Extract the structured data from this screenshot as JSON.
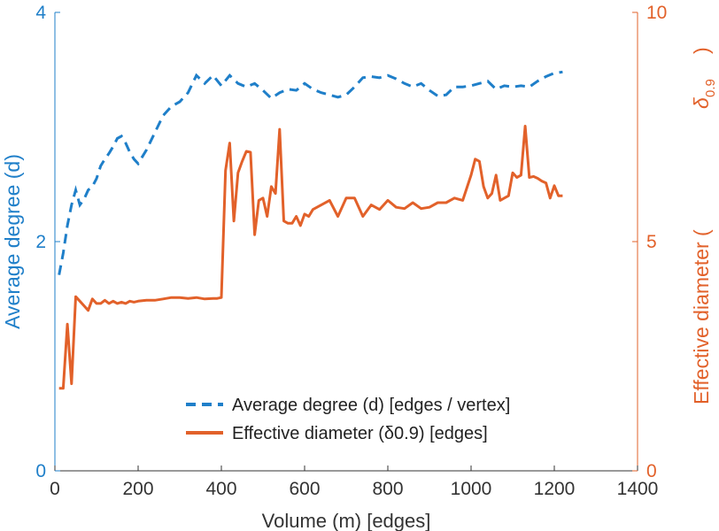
{
  "chart_data": {
    "type": "line",
    "xlabel": "Volume (m) [edges]",
    "ylabel_left": "Average degree (d)",
    "ylabel_right_prefix": "Effective diameter (",
    "ylabel_right_symbol": "δ",
    "ylabel_right_subscript": "0.9",
    "ylabel_right_suffix": ")",
    "xlim": [
      0,
      1400
    ],
    "ylim_left": [
      0,
      4
    ],
    "ylim_right": [
      0,
      10
    ],
    "xticks": [
      "0",
      "200",
      "400",
      "600",
      "800",
      "1000",
      "1200",
      "1400"
    ],
    "yticks_left": [
      "0",
      "2",
      "4"
    ],
    "yticks_right": [
      "0",
      "5",
      "10"
    ],
    "grid": false,
    "legend_position": "bottom-right",
    "colors": {
      "left_series": "#1f7fc9",
      "right_series": "#e2612a",
      "axis": "#333333"
    },
    "series": [
      {
        "name": "Average degree (d) [edges / vertex]",
        "axis": "left",
        "style": "dashed",
        "x": [
          10,
          20,
          30,
          40,
          50,
          60,
          70,
          80,
          90,
          100,
          110,
          120,
          130,
          140,
          150,
          160,
          170,
          180,
          190,
          200,
          220,
          240,
          260,
          280,
          300,
          320,
          340,
          360,
          380,
          400,
          420,
          440,
          460,
          480,
          500,
          520,
          540,
          560,
          580,
          600,
          620,
          640,
          660,
          680,
          700,
          720,
          740,
          760,
          780,
          800,
          820,
          840,
          860,
          880,
          900,
          920,
          940,
          960,
          980,
          1000,
          1020,
          1040,
          1060,
          1080,
          1100,
          1120,
          1140,
          1160,
          1180,
          1200,
          1220
        ],
        "values": [
          1.71,
          1.9,
          2.14,
          2.32,
          2.45,
          2.32,
          2.37,
          2.45,
          2.48,
          2.55,
          2.66,
          2.72,
          2.77,
          2.83,
          2.9,
          2.92,
          2.86,
          2.78,
          2.72,
          2.68,
          2.8,
          2.95,
          3.1,
          3.18,
          3.22,
          3.3,
          3.45,
          3.38,
          3.45,
          3.36,
          3.45,
          3.38,
          3.35,
          3.38,
          3.32,
          3.25,
          3.3,
          3.33,
          3.32,
          3.38,
          3.33,
          3.3,
          3.28,
          3.26,
          3.28,
          3.35,
          3.43,
          3.44,
          3.43,
          3.45,
          3.42,
          3.38,
          3.35,
          3.38,
          3.32,
          3.27,
          3.28,
          3.35,
          3.35,
          3.36,
          3.38,
          3.4,
          3.33,
          3.36,
          3.35,
          3.36,
          3.35,
          3.4,
          3.44,
          3.47,
          3.48
        ]
      },
      {
        "name": "Effective diameter (δ0.9) [edges]",
        "axis": "right",
        "style": "solid",
        "x": [
          10,
          20,
          30,
          40,
          50,
          60,
          70,
          80,
          90,
          100,
          110,
          120,
          130,
          140,
          150,
          160,
          170,
          180,
          190,
          200,
          220,
          240,
          260,
          280,
          300,
          320,
          340,
          360,
          380,
          390,
          400,
          410,
          420,
          430,
          440,
          450,
          460,
          470,
          480,
          490,
          500,
          510,
          520,
          530,
          540,
          550,
          560,
          570,
          580,
          590,
          600,
          610,
          620,
          640,
          660,
          680,
          700,
          720,
          740,
          760,
          780,
          800,
          820,
          840,
          860,
          880,
          900,
          920,
          940,
          960,
          980,
          1000,
          1010,
          1020,
          1030,
          1040,
          1050,
          1060,
          1070,
          1080,
          1090,
          1100,
          1110,
          1120,
          1130,
          1140,
          1150,
          1160,
          1170,
          1180,
          1190,
          1200,
          1210,
          1220
        ],
        "values": [
          1.8,
          1.8,
          3.2,
          1.9,
          3.8,
          3.7,
          3.6,
          3.5,
          3.75,
          3.65,
          3.65,
          3.72,
          3.65,
          3.7,
          3.65,
          3.68,
          3.65,
          3.7,
          3.68,
          3.7,
          3.72,
          3.72,
          3.75,
          3.78,
          3.78,
          3.76,
          3.78,
          3.75,
          3.76,
          3.76,
          3.78,
          6.55,
          7.15,
          5.45,
          6.5,
          6.75,
          6.97,
          6.95,
          5.15,
          5.9,
          5.95,
          5.55,
          6.2,
          6.05,
          7.45,
          5.45,
          5.4,
          5.4,
          5.55,
          5.35,
          5.6,
          5.55,
          5.7,
          5.8,
          5.9,
          5.55,
          5.95,
          5.95,
          5.55,
          5.8,
          5.7,
          5.9,
          5.75,
          5.72,
          5.85,
          5.72,
          5.75,
          5.85,
          5.85,
          5.95,
          5.9,
          6.45,
          6.8,
          6.75,
          6.2,
          5.95,
          6.05,
          6.45,
          5.9,
          5.95,
          6.0,
          6.5,
          6.4,
          6.45,
          7.52,
          6.4,
          6.42,
          6.38,
          6.32,
          6.28,
          5.95,
          6.22,
          6.0,
          6.0
        ]
      }
    ]
  }
}
